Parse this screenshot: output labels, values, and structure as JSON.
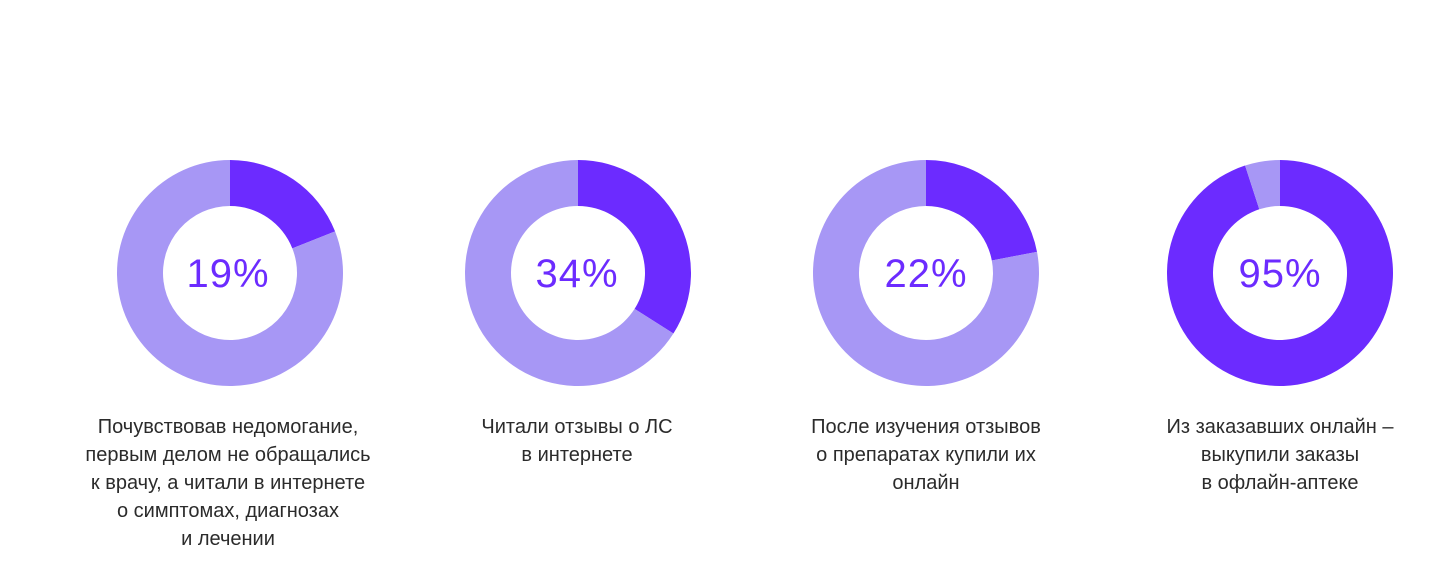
{
  "colors": {
    "value": "#6c2bff",
    "rest": "#a797f5",
    "hole": "#ffffff",
    "text": "#2b2b2b"
  },
  "chart_data": [
    {
      "type": "pie",
      "value_label": "19%",
      "values": [
        19,
        81
      ],
      "caption_lines": [
        "Почувствовав недомогание,",
        "первым делом не обращались",
        "к врачу, а читали в интернете",
        "о симптомах, диагнозах",
        "и лечении"
      ]
    },
    {
      "type": "pie",
      "value_label": "34%",
      "values": [
        34,
        66
      ],
      "caption_lines": [
        "Читали отзывы о ЛС",
        "в интернете"
      ]
    },
    {
      "type": "pie",
      "value_label": "22%",
      "values": [
        22,
        78
      ],
      "caption_lines": [
        "После изучения отзывов",
        "о препаратах купили их",
        "онлайн"
      ]
    },
    {
      "type": "pie",
      "value_label": "95%",
      "values": [
        95,
        5
      ],
      "caption_lines": [
        "Из заказавших онлайн –",
        "выкупили заказы",
        "в офлайн-аптеке"
      ]
    }
  ]
}
